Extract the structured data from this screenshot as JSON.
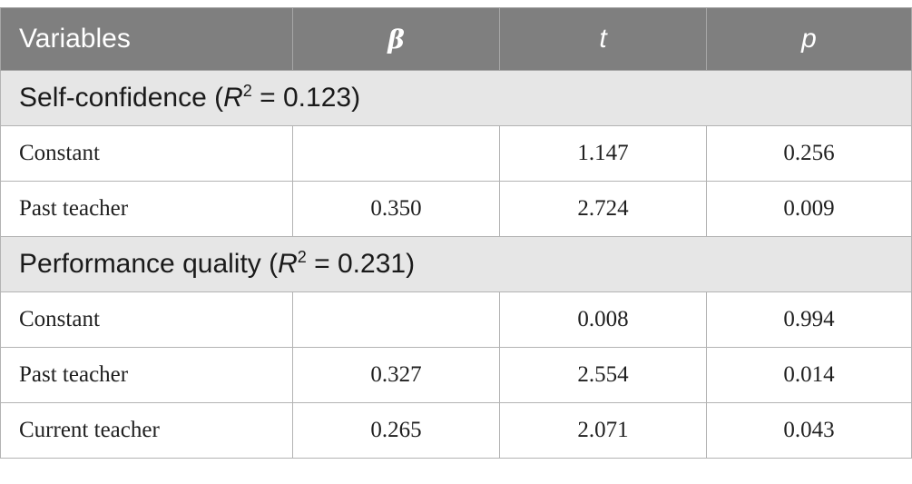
{
  "header": {
    "col_variables": "Variables",
    "col_beta": "β",
    "col_t": "t",
    "col_p": "p"
  },
  "sections": [
    {
      "title_prefix": "Self-confidence (",
      "title_r": "R",
      "title_sup": "2",
      "title_suffix": " = 0.123)",
      "rows": [
        {
          "label": "Constant",
          "beta": "",
          "t": "1.147",
          "p": "0.256"
        },
        {
          "label": "Past teacher",
          "beta": "0.350",
          "t": "2.724",
          "p": "0.009"
        }
      ]
    },
    {
      "title_prefix": "Performance quality (",
      "title_r": "R",
      "title_sup": "2",
      "title_suffix": " = 0.231)",
      "rows": [
        {
          "label": "Constant",
          "beta": "",
          "t": "0.008",
          "p": "0.994"
        },
        {
          "label": "Past teacher",
          "beta": "0.327",
          "t": "2.554",
          "p": "0.014"
        },
        {
          "label": "Current teacher",
          "beta": "0.265",
          "t": "2.071",
          "p": "0.043"
        }
      ]
    }
  ]
}
